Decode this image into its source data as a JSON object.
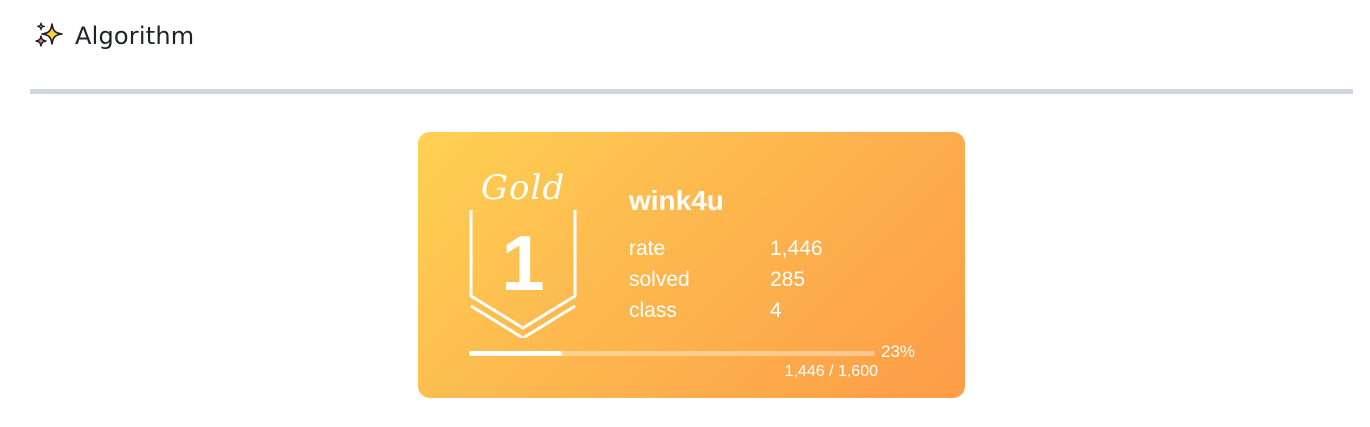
{
  "section": {
    "title": "Algorithm",
    "icon": "sparkles-icon"
  },
  "card": {
    "tier_name": "Gold",
    "tier_level": "1",
    "username": "wink4u",
    "stats": [
      {
        "label": "rate",
        "value": "1,446"
      },
      {
        "label": "solved",
        "value": "285"
      },
      {
        "label": "class",
        "value": "4"
      }
    ],
    "progress": {
      "fraction": 0.23,
      "percent_label": "23%",
      "count_label": "1,446 / 1,600"
    },
    "colors": {
      "gradient_start": "#ffd152",
      "gradient_end": "#fd9c47",
      "text": "#ffffff"
    }
  }
}
